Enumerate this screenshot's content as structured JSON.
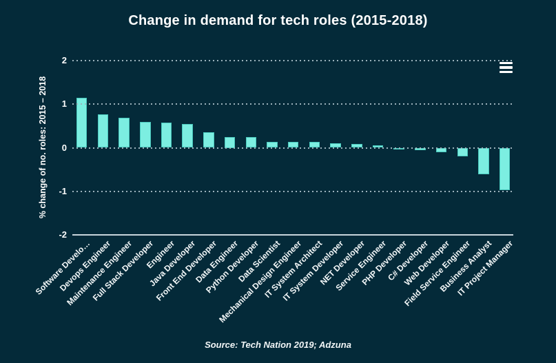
{
  "header": {
    "title": "Change in demand for tech roles (2015-2018)"
  },
  "footer": {
    "source": "Source: Tech Nation 2019; Adzuna"
  },
  "colors": {
    "background": "#042a39",
    "bar_fill": "#7ceee1",
    "bar_border": "#49c8bd",
    "grid_dots": "#9db3bd",
    "axis_line": "#c9d6dc",
    "text": "#ffffff"
  },
  "menu": {
    "icon": "hamburger-menu-icon"
  },
  "chart_data": {
    "type": "bar",
    "title": "Change in demand for tech roles (2015-2018)",
    "ylabel": "% change of no. roles: 2015 – 2018",
    "xlabel": "",
    "ylim": [
      -2,
      2
    ],
    "yticks": [
      2,
      1,
      0,
      -1,
      -2
    ],
    "grid": "dotted horizontal lines at 2, 1, 0, -1; solid axis line at -2",
    "legend": "none",
    "source": "Source: Tech Nation 2019; Adzuna",
    "categories": [
      "Software Develo…",
      "Devops Engineer",
      "Maintenance Engineer",
      "Full Stack Developer",
      "Engineer",
      "Java Developer",
      "Front End Developer",
      "Data Engineer",
      "Python Developer",
      "Data Scientist",
      "Mechanical Design Engineer",
      "IT System Architect",
      "IT System Developer",
      "NET Developer",
      "Service Engineer",
      "PHP Developer",
      "C# Developer",
      "Web Developer",
      "Field Service Engineer",
      "Business Analyst",
      "IT Project Manager"
    ],
    "values": [
      1.14,
      0.76,
      0.68,
      0.6,
      0.58,
      0.54,
      0.36,
      0.25,
      0.24,
      0.13,
      0.13,
      0.14,
      0.1,
      0.08,
      0.05,
      -0.02,
      -0.06,
      -0.1,
      -0.2,
      -0.61,
      -0.97
    ]
  }
}
